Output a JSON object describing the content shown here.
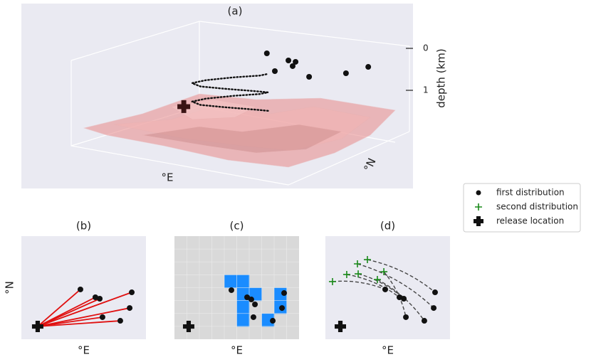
{
  "chart_data": [
    {
      "type": "scatter3d",
      "title": "(a)",
      "xlabel": "°E",
      "ylabel": "°N",
      "zlabel": "depth (km)",
      "xlim": [
        0,
        10
      ],
      "ylim": [
        0,
        10
      ],
      "zlim": [
        0,
        1.6
      ],
      "zticks": [
        0,
        1
      ],
      "series": [
        {
          "name": "first distribution",
          "color": "#111111",
          "x": [
            4.99,
            6.29,
            6.63,
            6.95,
            6.91,
            8.44,
            9.17,
            9.21
          ],
          "y": [
            6.81,
            6.29,
            6.27,
            5.5,
            4.18,
            4.26,
            5.9,
            7.57
          ],
          "z": [
            0,
            0,
            0,
            0,
            0,
            0,
            0,
            0
          ]
        },
        {
          "name": "release location",
          "color": "#3a1414",
          "x": [
            3.26
          ],
          "y": [
            3.26
          ],
          "z": [
            1.1
          ]
        },
        {
          "color": "#111111",
          "x": [
            5.7,
            5.38,
            4.6,
            3.82,
            3.5,
            3.82,
            4.6,
            5.38,
            5.7,
            5.38,
            4.6,
            3.82,
            3.5,
            3.82,
            4.6,
            5.38,
            5.7
          ],
          "y": [
            5.7,
            5.17,
            4.3,
            3.61,
            3.5,
            4.03,
            4.9,
            5.59,
            5.7,
            5.17,
            4.3,
            3.61,
            3.5,
            4.03,
            4.9,
            5.59,
            5.7
          ],
          "z": [
            1.2,
            1.15,
            1.09,
            1.04,
            0.98,
            0.93,
            0.87,
            0.82,
            0.76,
            0.71,
            0.65,
            0.6,
            0.54,
            0.49,
            0.43,
            0.38,
            0.32
          ]
        }
      ]
    },
    {
      "type": "scatter",
      "title": "(b)",
      "xlabel": "°E",
      "ylabel": "°N",
      "xlim": [
        0,
        10
      ],
      "ylim": [
        0,
        10
      ],
      "connect": "release",
      "connect_color": "#e01010",
      "series": [
        {
          "name": "first distribution",
          "color": "#111111",
          "x": [
            4.74,
            5.94,
            6.29,
            8.86,
            8.69,
            6.51,
            7.94
          ],
          "y": [
            4.83,
            4.07,
            3.93,
            4.55,
            3.03,
            2.14,
            1.79
          ]
        },
        {
          "name": "release location",
          "color": "#111111",
          "x": [
            1.31
          ],
          "y": [
            1.24
          ]
        }
      ]
    },
    {
      "type": "scatter",
      "title": "(c)",
      "xlabel": "°E",
      "xlim": [
        0,
        10
      ],
      "ylim": [
        0,
        10
      ],
      "grid_cells": [
        10,
        8
      ],
      "cell_color": "#1a8cff",
      "cells": {
        "col": [
          4,
          5,
          5,
          5,
          5,
          6,
          7,
          8,
          8
        ],
        "row": [
          3,
          3,
          4,
          5,
          6,
          4,
          6,
          4,
          5
        ]
      },
      "series": [
        {
          "name": "first distribution",
          "color": "#111111",
          "x": [
            4.57,
            5.83,
            6.17,
            6.46,
            6.34,
            7.89,
            8.8,
            8.63
          ],
          "y": [
            4.76,
            4.07,
            3.86,
            3.38,
            2.14,
            1.79,
            4.48,
            3.03
          ]
        },
        {
          "name": "release location",
          "color": "#111111",
          "x": [
            1.14
          ],
          "y": [
            1.24
          ]
        }
      ]
    },
    {
      "type": "scatter",
      "title": "(d)",
      "xlabel": "°E",
      "xlim": [
        0,
        10
      ],
      "ylim": [
        0,
        10
      ],
      "connect": "pairs",
      "connect_color": "#444444",
      "series": [
        {
          "name": "first distribution",
          "color": "#111111",
          "x": [
            4.8,
            5.94,
            6.29,
            8.8,
            8.69,
            6.46,
            7.94
          ],
          "y": [
            4.83,
            4.07,
            3.93,
            4.55,
            3.03,
            2.14,
            1.79
          ]
        },
        {
          "name": "second distribution",
          "color": "#1a8a1a",
          "x": [
            0.57,
            1.71,
            2.63,
            3.37,
            2.57,
            4.69,
            4.17
          ],
          "y": [
            5.59,
            6.28,
            6.34,
            7.72,
            7.31,
            6.55,
            5.79
          ]
        },
        {
          "name": "release location",
          "color": "#111111",
          "x": [
            1.2
          ],
          "y": [
            1.24
          ]
        }
      ]
    }
  ],
  "legend": {
    "position": "right"
  }
}
